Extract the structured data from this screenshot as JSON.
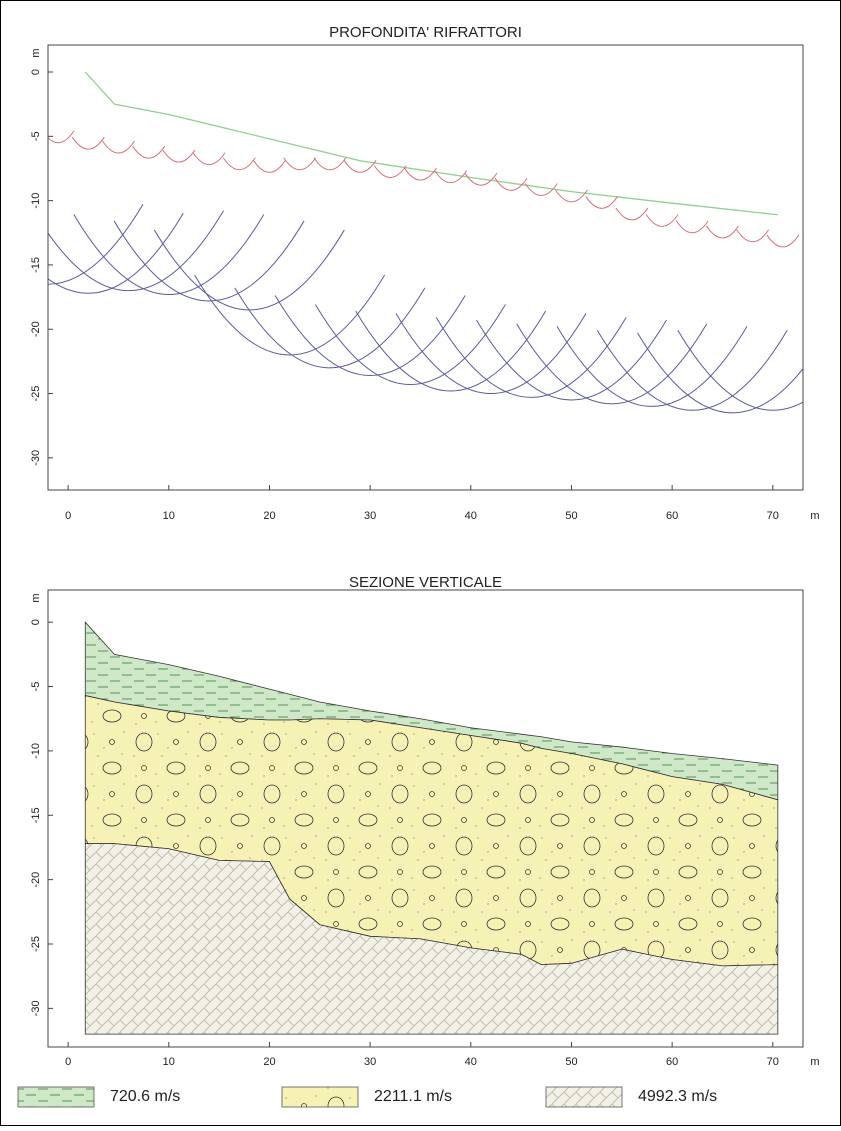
{
  "chart_data": [
    {
      "type": "line",
      "title": "PROFONDITA' RIFRATTORI",
      "xlabel": "m",
      "ylabel": "m",
      "xlim": [
        -2,
        73
      ],
      "ylim": [
        -32.5,
        2.1
      ],
      "xticks": [
        0,
        10,
        20,
        30,
        40,
        50,
        60,
        70
      ],
      "yticks": [
        0,
        -5,
        -10,
        -15,
        -20,
        -25,
        -30
      ],
      "series": [
        {
          "color": "#8fd08f",
          "marker": "none",
          "x": [
            1.7,
            4.6,
            10,
            20,
            29,
            40,
            50,
            60,
            70.5
          ],
          "values": [
            0,
            -2.5,
            -3.3,
            -5.2,
            -6.9,
            -8.2,
            -9.3,
            -10.2,
            -11.1
          ]
        },
        {
          "color": "#d9707a",
          "marker": "small-arc",
          "x": [
            -1,
            2,
            5,
            8,
            11,
            14,
            17,
            20,
            23,
            26,
            29,
            32,
            35,
            38,
            41,
            44,
            47,
            50,
            53,
            56,
            59,
            62,
            65,
            68,
            71
          ],
          "values": [
            -5.5,
            -6.0,
            -6.3,
            -6.7,
            -7.0,
            -7.2,
            -7.6,
            -7.8,
            -7.6,
            -7.6,
            -7.8,
            -8.2,
            -8.4,
            -8.6,
            -8.8,
            -9.2,
            -9.6,
            -10.1,
            -10.6,
            -11.5,
            -12.0,
            -12.5,
            -12.9,
            -13.2,
            -13.6
          ]
        },
        {
          "color": "#5a5aa0",
          "marker": "large-arc",
          "x": [
            -2,
            2,
            6,
            10,
            14,
            18,
            22,
            26,
            30,
            34,
            38,
            42,
            46,
            50,
            54,
            58,
            62,
            66,
            70
          ],
          "values": [
            -16.5,
            -17.2,
            -17.0,
            -17.3,
            -17.8,
            -18.5,
            -22.0,
            -23.0,
            -23.6,
            -24.3,
            -24.8,
            -25.0,
            -25.3,
            -25.5,
            -25.8,
            -26.0,
            -26.3,
            -26.5,
            -26.3
          ]
        }
      ]
    },
    {
      "type": "layers",
      "title": "SEZIONE VERTICALE",
      "xlabel": "m",
      "ylabel": "m",
      "xlim": [
        -2,
        73
      ],
      "ylim": [
        -33,
        2.5
      ],
      "xticks": [
        0,
        10,
        20,
        30,
        40,
        50,
        60,
        70
      ],
      "yticks": [
        0,
        -5,
        -10,
        -15,
        -20,
        -25,
        -30
      ],
      "x": [
        1.7,
        4.6,
        10,
        15,
        20,
        22,
        25,
        30,
        35,
        40,
        45,
        47,
        50,
        55,
        60,
        65,
        70.5
      ],
      "series": [
        {
          "name": "720.6 m/s",
          "color": "#cfe8c8",
          "values": [
            0,
            -2.5,
            -3.3,
            -4.2,
            -5.2,
            -5.6,
            -6.2,
            -6.9,
            -7.5,
            -8.2,
            -8.7,
            -8.9,
            -9.3,
            -9.7,
            -10.2,
            -10.6,
            -11.1
          ]
        },
        {
          "name": "2211.1 m/s",
          "color": "#f6f1b4",
          "values": [
            -5.7,
            -6.2,
            -6.9,
            -7.4,
            -7.6,
            -7.6,
            -7.5,
            -7.6,
            -8.2,
            -8.8,
            -9.4,
            -9.8,
            -10.2,
            -11.0,
            -12.0,
            -12.6,
            -13.8
          ]
        },
        {
          "name": "4992.3 m/s",
          "color": "#f3f0e6",
          "values": [
            -17.2,
            -17.2,
            -17.6,
            -18.5,
            -18.6,
            -21.5,
            -23.5,
            -24.4,
            -24.6,
            -25.3,
            -25.8,
            -26.6,
            -26.5,
            -25.4,
            -26.2,
            -26.7,
            -26.6
          ]
        },
        {
          "color": "#000000",
          "values": [
            -32,
            -32,
            -32,
            -32,
            -32,
            -32,
            -32,
            -32,
            -32,
            -32,
            -32,
            -32,
            -32,
            -32,
            -32,
            -32,
            -32
          ]
        }
      ]
    }
  ]
}
